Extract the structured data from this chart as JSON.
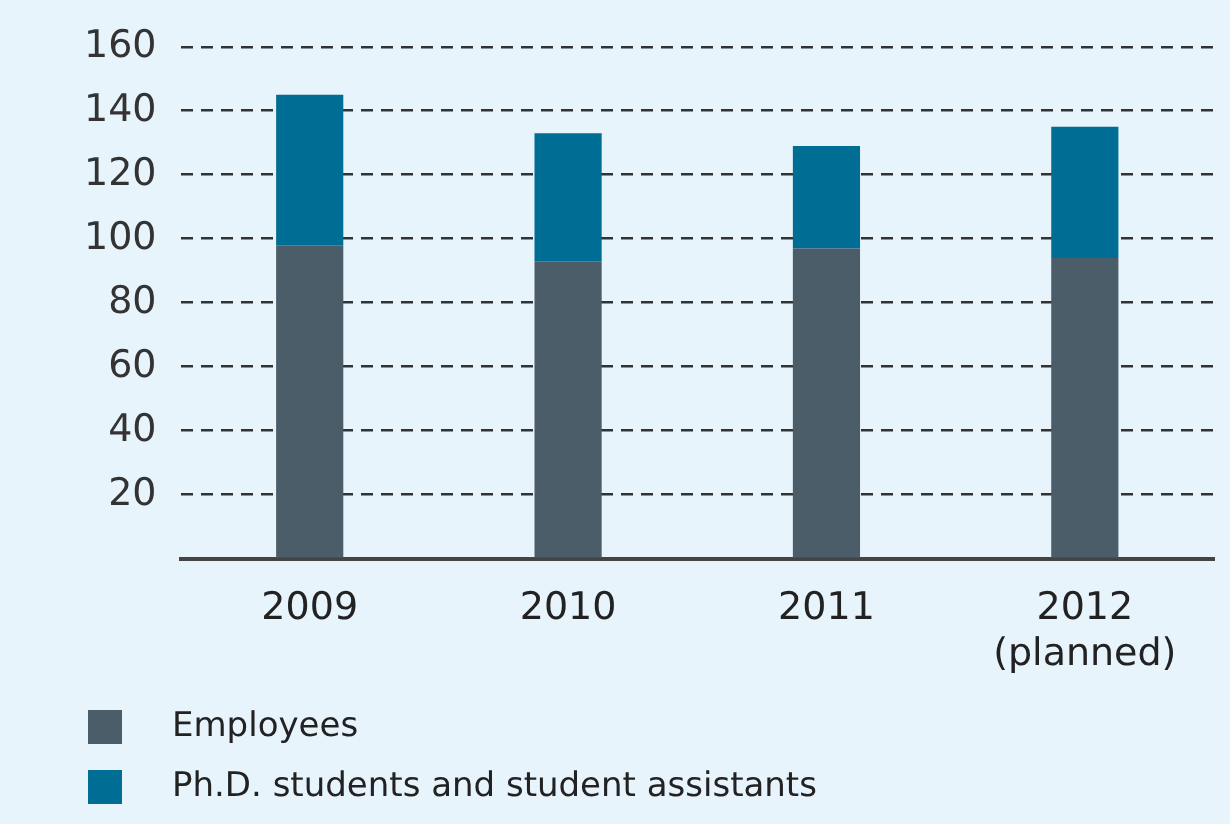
{
  "chart_data": {
    "type": "bar",
    "stacked": true,
    "categories": [
      "2009",
      "2010",
      "2011",
      "2012\n(planned)"
    ],
    "series": [
      {
        "name": "Employees",
        "color": "#4a5d69",
        "values": [
          98,
          93,
          97,
          94
        ]
      },
      {
        "name": "Ph.D. students and student assistants",
        "color": "#006d94",
        "values": [
          47,
          40,
          32,
          41
        ]
      }
    ],
    "ylim": [
      0,
      160
    ],
    "yticks": [
      {
        "value": 0,
        "label": null
      },
      20,
      40,
      60,
      80,
      100,
      120,
      140,
      160
    ],
    "grid": "y",
    "legend": "bottom left"
  }
}
